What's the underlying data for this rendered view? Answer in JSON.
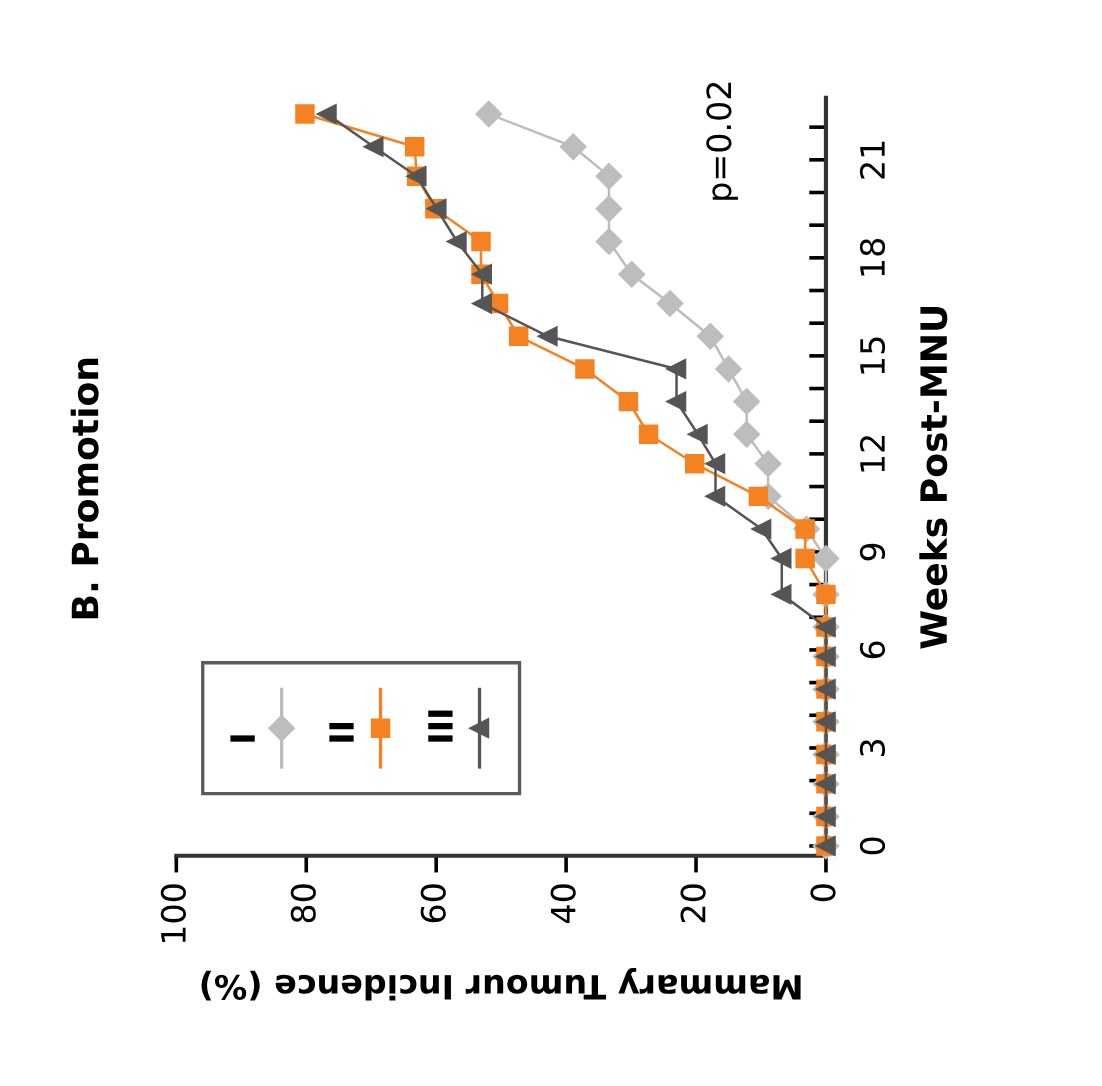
{
  "chart_data": {
    "type": "line",
    "orientation": "horizontal",
    "title": "B. Promotion",
    "xlabel": "Mammary Tumour Incidence (%)",
    "ylabel": "Weeks Post-MNU",
    "annotations": [
      "p=0.02"
    ],
    "x": [
      0,
      0.9,
      1.9,
      2.8,
      3.8,
      4.8,
      5.8,
      6.7,
      7.7,
      8.8,
      9.7,
      10.7,
      11.7,
      12.6,
      13.6,
      14.6,
      15.6,
      16.6,
      17.5,
      18.5,
      19.5,
      20.5,
      21.4,
      22.4
    ],
    "series": [
      {
        "name": "I",
        "color": "#bdbdbd",
        "marker": "diamond",
        "values": [
          0,
          0,
          0,
          0,
          0,
          0,
          0,
          0,
          0,
          0,
          3.0,
          8.9,
          8.9,
          12.2,
          12.2,
          15.0,
          17.8,
          24.0,
          29.9,
          33.4,
          33.4,
          33.4,
          38.9,
          51.9
        ]
      },
      {
        "name": "II",
        "color": "#f58220",
        "marker": "square",
        "values": [
          0,
          0,
          0,
          0,
          0,
          0,
          0,
          0,
          0,
          3.2,
          3.2,
          10.4,
          20.2,
          27.3,
          30.4,
          37.1,
          47.3,
          50.4,
          53.1,
          53.1,
          60.2,
          63,
          63.3,
          80.2
        ]
      },
      {
        "name": "III",
        "color": "#555555",
        "marker": "triangle",
        "values": [
          0,
          0,
          0,
          0,
          0,
          0,
          0,
          0,
          6.8,
          6.8,
          9.9,
          17.0,
          17.0,
          19.7,
          23.0,
          23.0,
          42.8,
          52.9,
          52.9,
          56.8,
          59.9,
          63,
          69.6,
          76.8
        ]
      }
    ],
    "xlim": [
      100,
      0
    ],
    "xticks": [
      0,
      20,
      40,
      60,
      80,
      100
    ],
    "ylim": [
      -0.3,
      22.9
    ],
    "yticks": [
      {
        "value": 0,
        "label": "0"
      },
      {
        "value": 1,
        "label": null
      },
      {
        "value": 2,
        "label": null
      },
      {
        "value": 3,
        "label": "3"
      },
      {
        "value": 4,
        "label": null
      },
      {
        "value": 5,
        "label": null
      },
      {
        "value": 6,
        "label": "6"
      },
      {
        "value": 7,
        "label": null
      },
      {
        "value": 8,
        "label": null
      },
      {
        "value": 9,
        "label": "9"
      },
      {
        "value": 10,
        "label": null
      },
      {
        "value": 11,
        "label": null
      },
      {
        "value": 12,
        "label": "12"
      },
      {
        "value": 13,
        "label": null
      },
      {
        "value": 14,
        "label": null
      },
      {
        "value": 15,
        "label": "15"
      },
      {
        "value": 16,
        "label": null
      },
      {
        "value": 17,
        "label": null
      },
      {
        "value": 18,
        "label": "18"
      },
      {
        "value": 19,
        "label": null
      },
      {
        "value": 20,
        "label": null
      },
      {
        "value": 21,
        "label": "21"
      },
      {
        "value": 22,
        "label": null
      }
    ],
    "legend": "bottom left",
    "grid": false,
    "line_style": "solid"
  }
}
